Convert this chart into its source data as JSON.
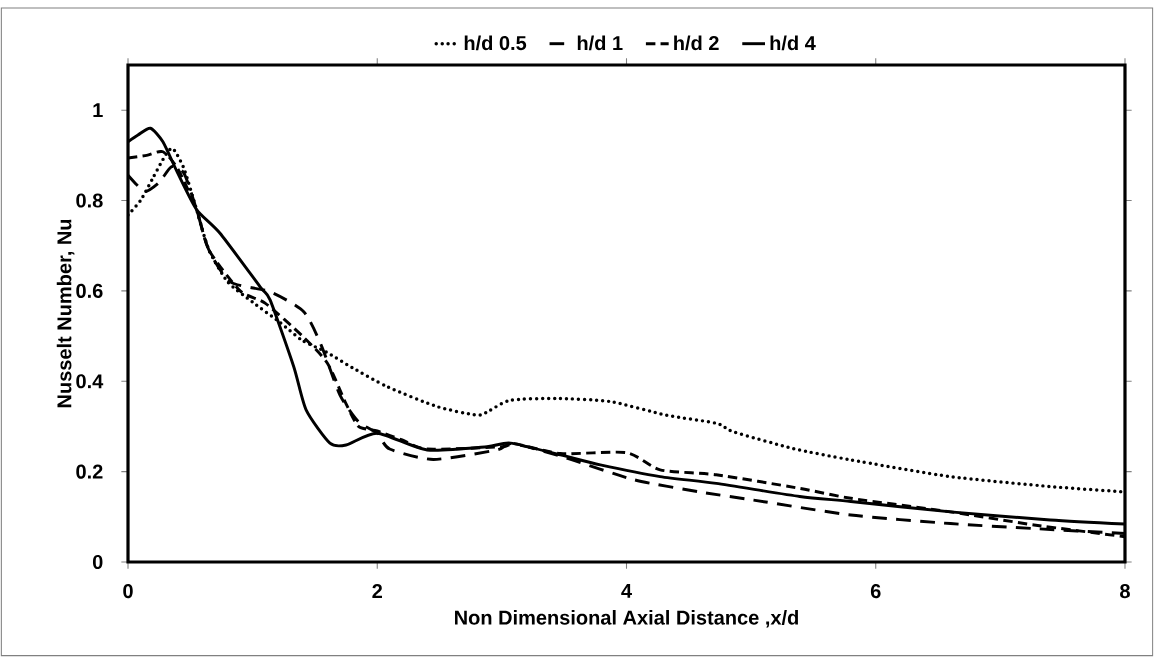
{
  "chart_data": {
    "type": "line",
    "xlabel": "Non Dimensional Axial Distance ,x/d",
    "ylabel": "Nusselt Number, Nu",
    "xlim": [
      0,
      8
    ],
    "ylim": [
      0,
      1.1
    ],
    "xticks": [
      0,
      2,
      4,
      6,
      8
    ],
    "yticks": [
      0,
      0.2,
      0.4,
      0.6,
      0.8,
      1
    ],
    "legend": "top",
    "grid": false,
    "series": [
      {
        "name": "h/d 0.5",
        "color": "#000000",
        "line_style": "dotted",
        "x": [
          0,
          0.1,
          0.2,
          0.3,
          0.36,
          0.45,
          0.55,
          0.65,
          0.8,
          1.0,
          1.22,
          1.4,
          1.59,
          1.8,
          2.08,
          2.48,
          2.8,
          2.9,
          3.07,
          3.44,
          3.87,
          4.32,
          4.72,
          4.86,
          5.34,
          5.8,
          6.6,
          7.4,
          8
        ],
        "values": [
          0.768,
          0.8,
          0.85,
          0.9,
          0.915,
          0.87,
          0.78,
          0.69,
          0.62,
          0.575,
          0.53,
          0.49,
          0.465,
          0.43,
          0.388,
          0.344,
          0.325,
          0.335,
          0.358,
          0.362,
          0.355,
          0.325,
          0.307,
          0.288,
          0.251,
          0.226,
          0.189,
          0.167,
          0.155
        ]
      },
      {
        "name": "h/d 1",
        "color": "#000000",
        "line_style": "long dashed",
        "x": [
          0,
          0.07,
          0.14,
          0.25,
          0.35,
          0.45,
          0.55,
          0.65,
          0.82,
          1.14,
          1.41,
          1.55,
          1.7,
          1.85,
          2.0,
          2.1,
          2.45,
          2.96,
          3.09,
          3.52,
          4.06,
          4.59,
          5.02,
          5.8,
          6.6,
          7.27,
          8
        ],
        "values": [
          0.856,
          0.835,
          0.82,
          0.84,
          0.875,
          0.86,
          0.78,
          0.69,
          0.62,
          0.598,
          0.554,
          0.48,
          0.37,
          0.31,
          0.285,
          0.25,
          0.227,
          0.248,
          0.262,
          0.23,
          0.182,
          0.155,
          0.137,
          0.104,
          0.085,
          0.074,
          0.063
        ]
      },
      {
        "name": "h/d 2",
        "color": "#000000",
        "line_style": "dashed",
        "x": [
          0,
          0.15,
          0.28,
          0.4,
          0.55,
          0.65,
          0.9,
          1.1,
          1.4,
          1.6,
          1.75,
          1.85,
          2.0,
          2.2,
          2.4,
          3.0,
          3.1,
          3.47,
          4.0,
          4.27,
          4.72,
          5.39,
          5.8,
          6.6,
          7.27,
          8
        ],
        "values": [
          0.894,
          0.9,
          0.908,
          0.87,
          0.78,
          0.69,
          0.6,
          0.573,
          0.5,
          0.44,
          0.35,
          0.3,
          0.29,
          0.27,
          0.25,
          0.255,
          0.262,
          0.24,
          0.242,
          0.204,
          0.193,
          0.163,
          0.141,
          0.111,
          0.082,
          0.056
        ]
      },
      {
        "name": "h/d 4",
        "color": "#000000",
        "line_style": "solid",
        "x": [
          0,
          0.08,
          0.18,
          0.28,
          0.4,
          0.55,
          0.74,
          1.06,
          1.14,
          1.33,
          1.43,
          1.62,
          1.75,
          2.0,
          2.4,
          2.88,
          3.07,
          3.47,
          3.79,
          4.27,
          4.72,
          5.39,
          5.8,
          6.6,
          7.4,
          8
        ],
        "values": [
          0.93,
          0.945,
          0.96,
          0.93,
          0.86,
          0.78,
          0.727,
          0.609,
          0.58,
          0.432,
          0.336,
          0.263,
          0.259,
          0.285,
          0.248,
          0.255,
          0.263,
          0.237,
          0.215,
          0.189,
          0.174,
          0.145,
          0.134,
          0.111,
          0.093,
          0.084
        ]
      }
    ]
  }
}
